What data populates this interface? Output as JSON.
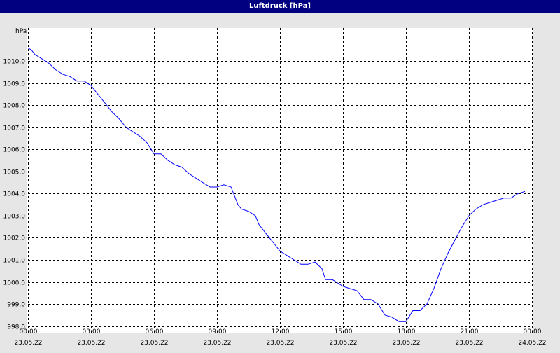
{
  "window": {
    "title": "Luftdruck [hPa]"
  },
  "colors": {
    "title_bar": "#000080",
    "line": "#0000ff",
    "background": "#e6e6e6",
    "plot_bg": "#ffffff"
  },
  "chart_data": {
    "type": "line",
    "title": "Luftdruck [hPa]",
    "ylabel": "hPa",
    "xlabel": "",
    "ylim": [
      997.7,
      1011.5
    ],
    "xlim": [
      0,
      24
    ],
    "y_ticks": [
      {
        "value": 998,
        "label": "998,0"
      },
      {
        "value": 999,
        "label": "999,0"
      },
      {
        "value": 1000,
        "label": "1000,0"
      },
      {
        "value": 1001,
        "label": "1001,0"
      },
      {
        "value": 1002,
        "label": "1002,0"
      },
      {
        "value": 1003,
        "label": "1003,0"
      },
      {
        "value": 1004,
        "label": "1004,0"
      },
      {
        "value": 1005,
        "label": "1005,0"
      },
      {
        "value": 1006,
        "label": "1006,0"
      },
      {
        "value": 1007,
        "label": "1007,0"
      },
      {
        "value": 1008,
        "label": "1008,0"
      },
      {
        "value": 1009,
        "label": "1009,0"
      },
      {
        "value": 1010,
        "label": "1010,0"
      }
    ],
    "x_ticks": [
      {
        "value": 0,
        "time": "00:00",
        "date": "23.05.22"
      },
      {
        "value": 3,
        "time": "03:00",
        "date": "23.05.22"
      },
      {
        "value": 6,
        "time": "06:00",
        "date": "23.05.22"
      },
      {
        "value": 9,
        "time": "09:00",
        "date": "23.05.22"
      },
      {
        "value": 12,
        "time": "12:00",
        "date": "23.05.22"
      },
      {
        "value": 15,
        "time": "15:00",
        "date": "23.05.22"
      },
      {
        "value": 18,
        "time": "18:00",
        "date": "23.05.22"
      },
      {
        "value": 21,
        "time": "21:00",
        "date": "23.05.22"
      },
      {
        "value": 24,
        "time": "00:00",
        "date": "24.05.22"
      }
    ],
    "grid": true,
    "series": [
      {
        "x": [
          0,
          0.17,
          0.33,
          0.67,
          1.0,
          1.33,
          1.5,
          1.67,
          2.0,
          2.33,
          2.67,
          3.0,
          3.33,
          3.67,
          4.0,
          4.33,
          4.67,
          5.0,
          5.33,
          5.67,
          6.0,
          6.33,
          6.67,
          7.0,
          7.33,
          7.67,
          8.0,
          8.33,
          8.67,
          9.0,
          9.33,
          9.67,
          10.0,
          10.17,
          10.5,
          10.83,
          11.0,
          11.33,
          11.67,
          12.0,
          12.33,
          12.67,
          13.0,
          13.33,
          13.67,
          14.0,
          14.17,
          14.5,
          14.67,
          15.0,
          15.33,
          15.67,
          16.0,
          16.33,
          16.67,
          17.0,
          17.33,
          17.67,
          18.0,
          18.33,
          18.67,
          19.0,
          19.33,
          19.67,
          20.0,
          20.33,
          20.67,
          21.0,
          21.33,
          21.67,
          22.0,
          22.33,
          22.67,
          23.0,
          23.33,
          23.67
        ],
        "y": [
          1010.6,
          1010.5,
          1010.3,
          1010.1,
          1009.9,
          1009.6,
          1009.5,
          1009.4,
          1009.3,
          1009.1,
          1009.1,
          1008.9,
          1008.5,
          1008.1,
          1007.7,
          1007.4,
          1007.0,
          1006.8,
          1006.6,
          1006.3,
          1005.8,
          1005.8,
          1005.5,
          1005.3,
          1005.2,
          1004.9,
          1004.7,
          1004.5,
          1004.3,
          1004.3,
          1004.4,
          1004.3,
          1003.5,
          1003.3,
          1003.2,
          1003.0,
          1002.6,
          1002.2,
          1001.8,
          1001.4,
          1001.2,
          1001.0,
          1000.8,
          1000.8,
          1000.9,
          1000.6,
          1000.1,
          1000.1,
          1000.0,
          999.8,
          999.7,
          999.6,
          999.2,
          999.2,
          999.0,
          998.5,
          998.4,
          998.2,
          998.2,
          998.7,
          998.7,
          999.0,
          999.7,
          1000.6,
          1001.3,
          1001.9,
          1002.5,
          1003.0,
          1003.3,
          1003.5,
          1003.6,
          1003.7,
          1003.8,
          1003.8,
          1004.0,
          1004.1
        ]
      }
    ]
  }
}
